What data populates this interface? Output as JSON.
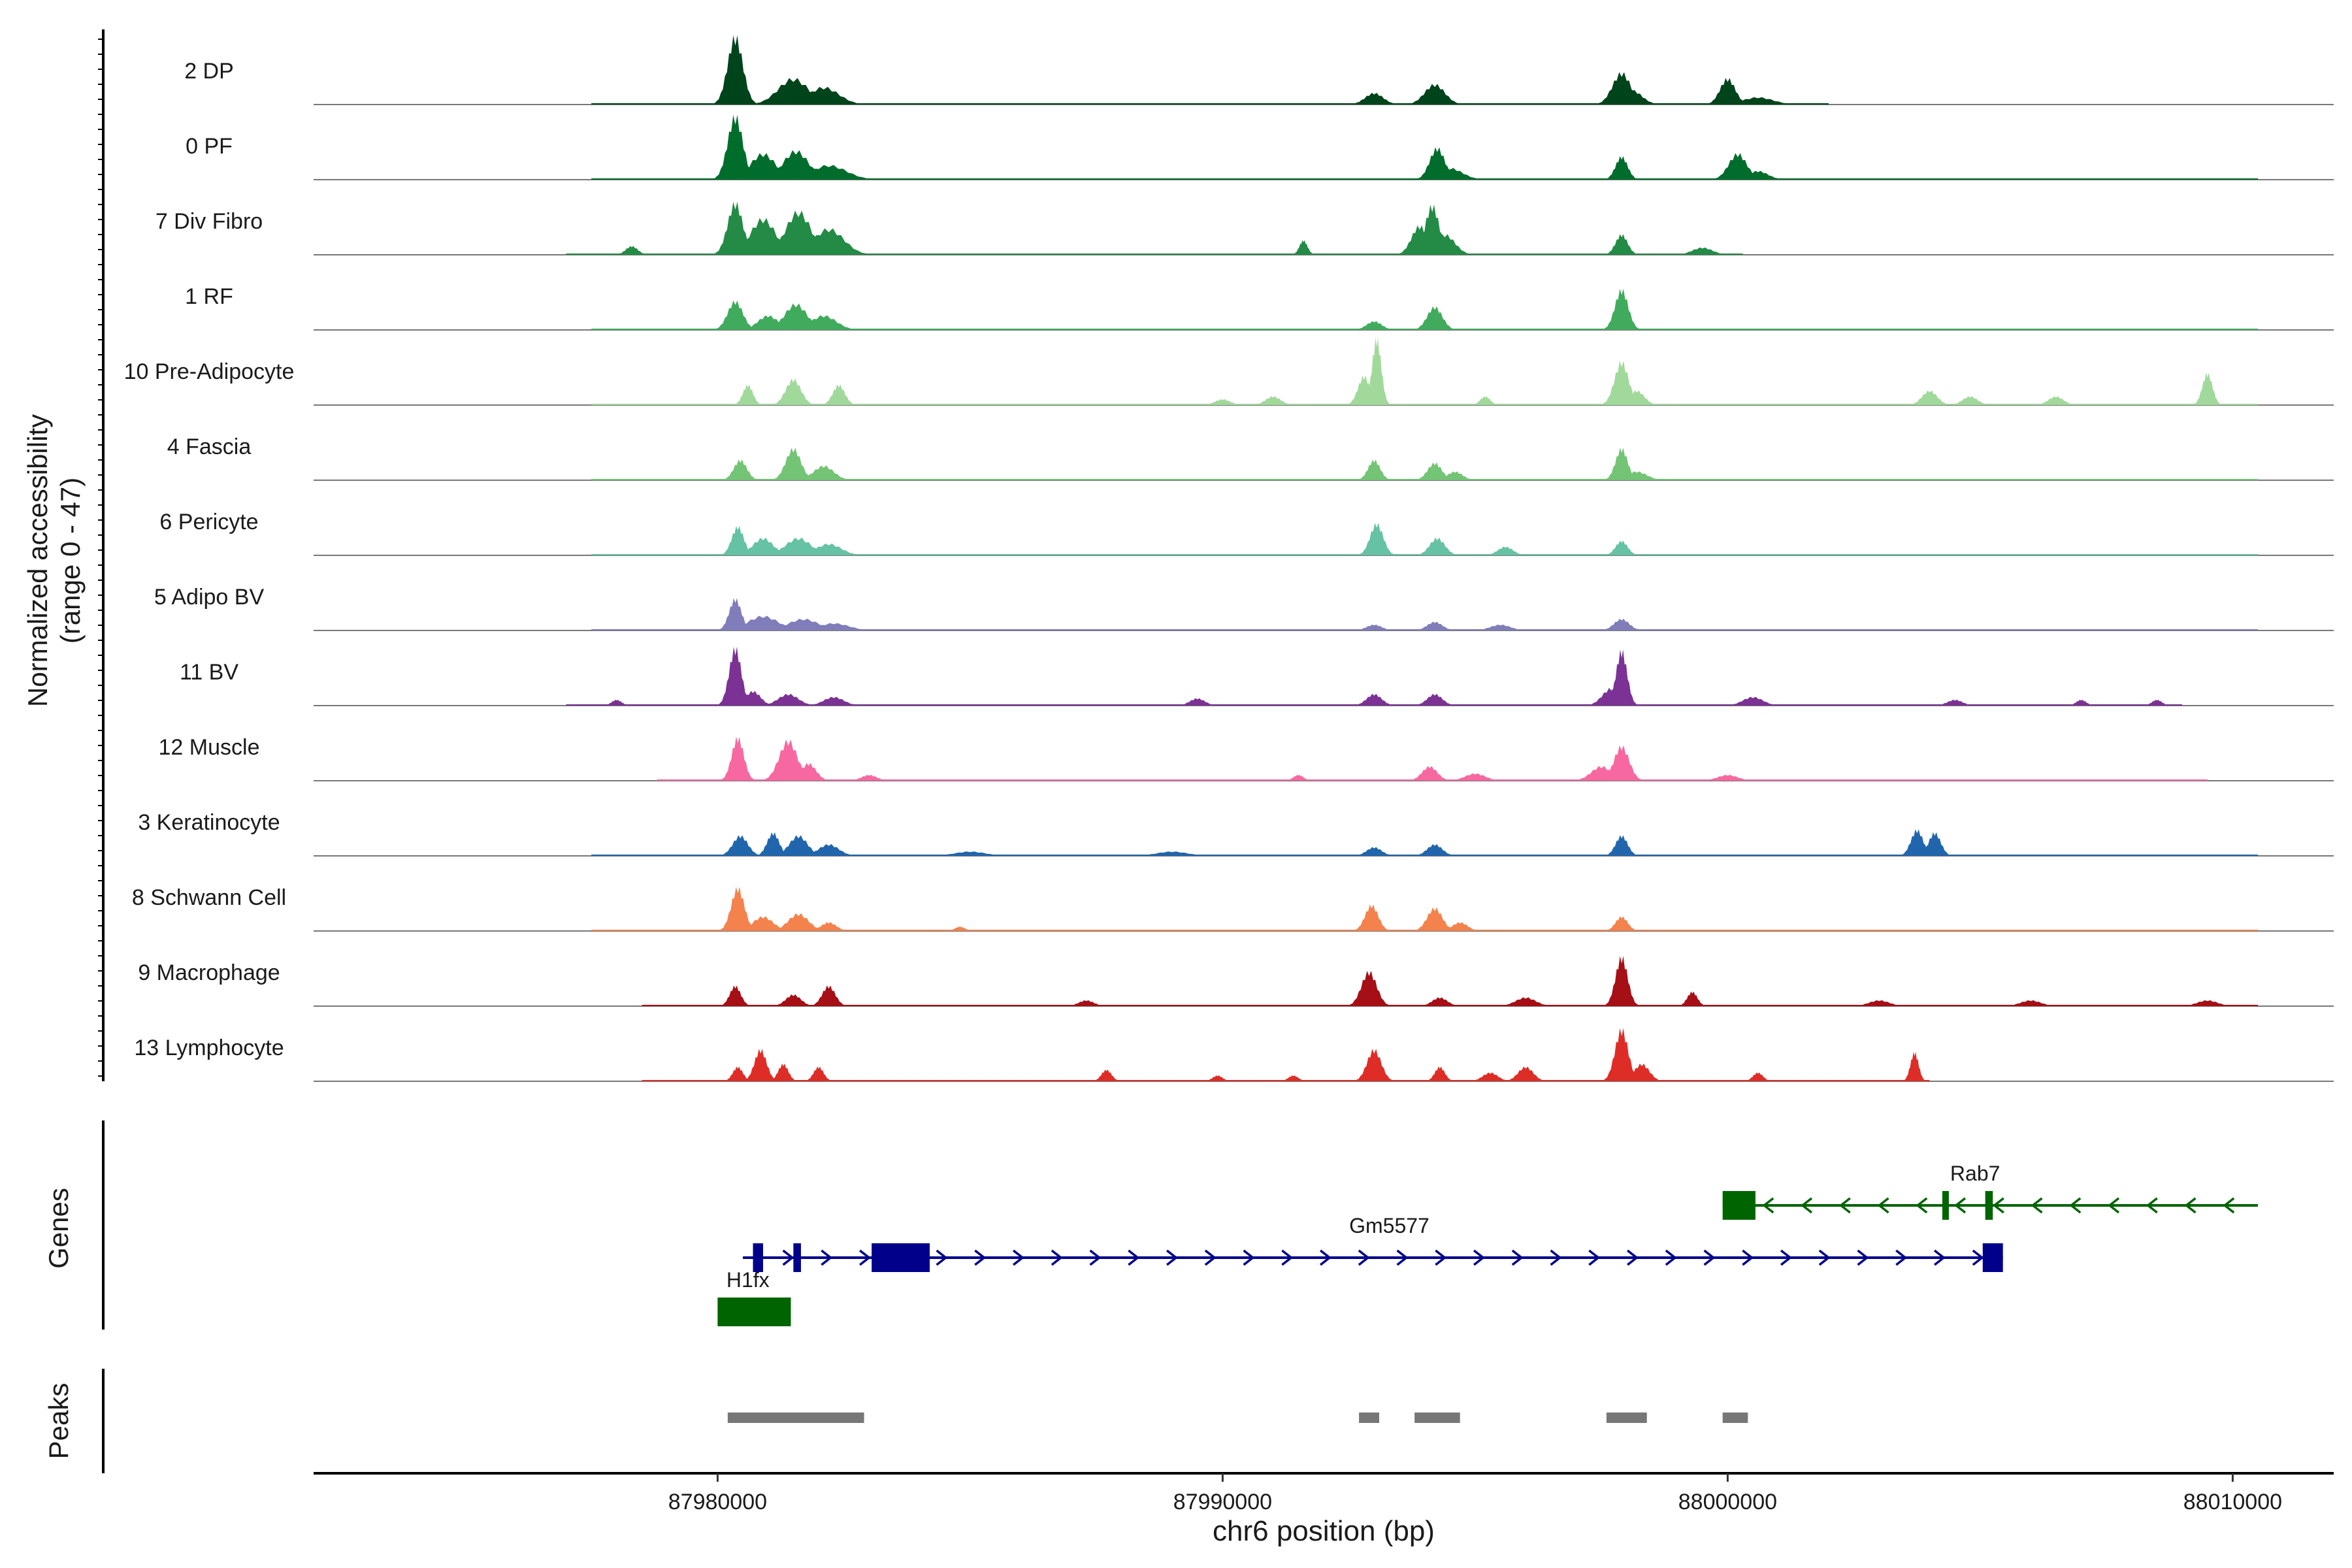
{
  "chart_data": {
    "type": "area",
    "title": "",
    "region": "chr6",
    "xlabel": "chr6 position (bp)",
    "ylabel_line1": "Normalized accessibility",
    "ylabel_line2": "(range 0 - 47)",
    "xlim": [
      87972000,
      88012000
    ],
    "xticks": [
      87980000,
      87990000,
      88000000,
      88010000
    ],
    "xtick_labels": [
      "87980000",
      "87990000",
      "88000000",
      "88010000"
    ],
    "ylim": [
      0,
      47
    ],
    "tracks": [
      {
        "name": "2 DP",
        "color": "#00441b",
        "span": [
          87977500,
          88002000
        ],
        "peaks": [
          [
            87980350,
            47,
            150
          ],
          [
            87981500,
            18,
            300
          ],
          [
            87982100,
            12,
            300
          ],
          [
            87993000,
            8,
            180
          ],
          [
            87994200,
            14,
            200
          ],
          [
            87997900,
            22,
            180
          ],
          [
            87998100,
            10,
            200
          ],
          [
            88000000,
            18,
            150
          ],
          [
            88000600,
            5,
            300
          ]
        ]
      },
      {
        "name": "0 PF",
        "color": "#006d2c",
        "span": [
          87977500,
          88010500
        ],
        "peaks": [
          [
            87980350,
            44,
            150
          ],
          [
            87980900,
            18,
            250
          ],
          [
            87981550,
            20,
            250
          ],
          [
            87982200,
            10,
            350
          ],
          [
            87994250,
            22,
            150
          ],
          [
            87994500,
            8,
            250
          ],
          [
            87997900,
            16,
            120
          ],
          [
            88000200,
            18,
            180
          ],
          [
            88000600,
            6,
            200
          ]
        ]
      },
      {
        "name": "7 Div Fibro",
        "color": "#238b45",
        "span": [
          87977000,
          88000300
        ],
        "peaks": [
          [
            87980350,
            36,
            150
          ],
          [
            87980900,
            25,
            250
          ],
          [
            87981600,
            30,
            250
          ],
          [
            87982200,
            18,
            300
          ],
          [
            87991600,
            10,
            80
          ],
          [
            87994150,
            34,
            140
          ],
          [
            87993900,
            20,
            160
          ],
          [
            87994400,
            14,
            200
          ],
          [
            87997900,
            14,
            120
          ],
          [
            87999500,
            5,
            200
          ],
          [
            87978300,
            6,
            120
          ]
        ]
      },
      {
        "name": "1 RF",
        "color": "#41ab5d",
        "span": [
          87977500,
          88010500
        ],
        "peaks": [
          [
            87980350,
            20,
            150
          ],
          [
            87981550,
            18,
            220
          ],
          [
            87982100,
            10,
            250
          ],
          [
            87993000,
            6,
            150
          ],
          [
            87994200,
            16,
            150
          ],
          [
            87997900,
            28,
            130
          ],
          [
            87981000,
            10,
            200
          ]
        ]
      },
      {
        "name": "10 Pre-Adipocyte",
        "color": "#a1d99b",
        "span": [
          87977500,
          88010500
        ],
        "peaks": [
          [
            87980600,
            14,
            100
          ],
          [
            87981500,
            18,
            150
          ],
          [
            87982400,
            14,
            120
          ],
          [
            87992800,
            20,
            120
          ],
          [
            87993050,
            46,
            90
          ],
          [
            87995200,
            6,
            100
          ],
          [
            87997900,
            30,
            140
          ],
          [
            87998200,
            10,
            150
          ],
          [
            88004000,
            10,
            150
          ],
          [
            88004800,
            6,
            150
          ],
          [
            88006500,
            6,
            150
          ],
          [
            88009500,
            22,
            100
          ],
          [
            87991000,
            6,
            150
          ],
          [
            87990000,
            4,
            150
          ]
        ]
      },
      {
        "name": "4 Fascia",
        "color": "#74c476",
        "span": [
          87977500,
          88010500
        ],
        "peaks": [
          [
            87980450,
            14,
            130
          ],
          [
            87981500,
            22,
            150
          ],
          [
            87982100,
            10,
            200
          ],
          [
            87993000,
            14,
            120
          ],
          [
            87994200,
            12,
            140
          ],
          [
            87994600,
            6,
            150
          ],
          [
            87997900,
            22,
            120
          ],
          [
            87998200,
            6,
            200
          ]
        ]
      },
      {
        "name": "6 Pericyte",
        "color": "#66c2a4",
        "span": [
          87977500,
          88010500
        ],
        "peaks": [
          [
            87980400,
            20,
            120
          ],
          [
            87980900,
            12,
            200
          ],
          [
            87981600,
            12,
            250
          ],
          [
            87982200,
            8,
            250
          ],
          [
            87993050,
            22,
            130
          ],
          [
            87994250,
            12,
            150
          ],
          [
            87995600,
            6,
            150
          ],
          [
            87997900,
            10,
            120
          ]
        ]
      },
      {
        "name": "5 Adipo BV",
        "color": "#807dba",
        "span": [
          87977500,
          88010500
        ],
        "peaks": [
          [
            87980350,
            22,
            120
          ],
          [
            87980900,
            10,
            300
          ],
          [
            87981700,
            8,
            300
          ],
          [
            87982300,
            5,
            300
          ],
          [
            87993000,
            4,
            150
          ],
          [
            87994200,
            6,
            150
          ],
          [
            87995500,
            4,
            200
          ],
          [
            87997900,
            8,
            150
          ]
        ]
      },
      {
        "name": "11 BV",
        "color": "#7b3294",
        "span": [
          87977000,
          88009000
        ],
        "peaks": [
          [
            87980350,
            40,
            120
          ],
          [
            87980700,
            10,
            150
          ],
          [
            87981400,
            8,
            200
          ],
          [
            87982300,
            6,
            200
          ],
          [
            87989500,
            5,
            150
          ],
          [
            87993000,
            8,
            150
          ],
          [
            87994200,
            8,
            150
          ],
          [
            87997900,
            38,
            110
          ],
          [
            87997700,
            12,
            180
          ],
          [
            88000500,
            6,
            200
          ],
          [
            88004500,
            4,
            150
          ],
          [
            88007000,
            4,
            100
          ],
          [
            88008500,
            4,
            100
          ],
          [
            87978000,
            4,
            100
          ]
        ]
      },
      {
        "name": "12 Muscle",
        "color": "#f768a1",
        "span": [
          87978800,
          88009500
        ],
        "peaks": [
          [
            87980400,
            30,
            120
          ],
          [
            87981400,
            28,
            180
          ],
          [
            87981800,
            12,
            150
          ],
          [
            87983000,
            4,
            150
          ],
          [
            87991500,
            4,
            100
          ],
          [
            87994100,
            10,
            150
          ],
          [
            87995000,
            5,
            200
          ],
          [
            87997900,
            24,
            150
          ],
          [
            87997500,
            10,
            200
          ],
          [
            88000000,
            4,
            200
          ]
        ]
      },
      {
        "name": "3 Keratinocyte",
        "color": "#2166ac",
        "span": [
          87977500,
          88010500
        ],
        "peaks": [
          [
            87980450,
            14,
            150
          ],
          [
            87981100,
            16,
            120
          ],
          [
            87981600,
            14,
            180
          ],
          [
            87982200,
            8,
            200
          ],
          [
            87993000,
            6,
            150
          ],
          [
            87994200,
            8,
            150
          ],
          [
            87997900,
            14,
            120
          ],
          [
            88003750,
            18,
            120
          ],
          [
            88004100,
            16,
            120
          ],
          [
            87989000,
            3,
            300
          ],
          [
            87985000,
            3,
            300
          ]
        ]
      },
      {
        "name": "8 Schwann Cell",
        "color": "#f4824d",
        "span": [
          87977500,
          88010500
        ],
        "peaks": [
          [
            87980400,
            30,
            130
          ],
          [
            87980900,
            10,
            200
          ],
          [
            87981600,
            12,
            200
          ],
          [
            87982200,
            6,
            150
          ],
          [
            87992950,
            18,
            130
          ],
          [
            87994200,
            16,
            150
          ],
          [
            87994700,
            6,
            150
          ],
          [
            87997900,
            10,
            120
          ],
          [
            87984800,
            3,
            100
          ]
        ]
      },
      {
        "name": "9 Macrophage",
        "color": "#a50f15",
        "span": [
          87978500,
          88010500
        ],
        "peaks": [
          [
            87980350,
            14,
            110
          ],
          [
            87981500,
            8,
            150
          ],
          [
            87982200,
            14,
            130
          ],
          [
            87992900,
            24,
            150
          ],
          [
            87994300,
            6,
            150
          ],
          [
            87996000,
            6,
            200
          ],
          [
            87997900,
            34,
            120
          ],
          [
            87999300,
            10,
            100
          ],
          [
            88003000,
            4,
            200
          ],
          [
            88006000,
            4,
            200
          ],
          [
            88009500,
            4,
            200
          ],
          [
            87987300,
            4,
            150
          ]
        ]
      },
      {
        "name": "13 Lymphocyte",
        "color": "#de2d26",
        "span": [
          87978500,
          88004000
        ],
        "peaks": [
          [
            87980400,
            10,
            100
          ],
          [
            87980850,
            22,
            120
          ],
          [
            87981300,
            12,
            100
          ],
          [
            87982000,
            10,
            100
          ],
          [
            87987700,
            8,
            100
          ],
          [
            87993000,
            22,
            140
          ],
          [
            87994300,
            10,
            100
          ],
          [
            87996000,
            10,
            150
          ],
          [
            87997900,
            36,
            130
          ],
          [
            87998300,
            12,
            150
          ],
          [
            88000600,
            6,
            100
          ],
          [
            88003700,
            20,
            80
          ],
          [
            87989900,
            4,
            100
          ],
          [
            87991400,
            4,
            100
          ],
          [
            87995300,
            6,
            150
          ]
        ]
      }
    ],
    "genes_label": "Genes",
    "peaks_label": "Peaks",
    "genes": [
      {
        "name": "Rab7",
        "strand": "-",
        "color": "#006400",
        "line": [
          87999900,
          88010500
        ],
        "exons": [
          [
            87999900,
            88000550
          ],
          [
            88004250,
            88004350
          ],
          [
            88005100,
            88005250
          ]
        ]
      },
      {
        "name": "Gm5577",
        "strand": "+",
        "color": "#00008b",
        "line": [
          87980500,
          88005450
        ],
        "exons": [
          [
            87980700,
            87980900
          ],
          [
            87981500,
            87981650
          ],
          [
            87983050,
            87984200
          ],
          [
            88005050,
            88005450
          ]
        ]
      },
      {
        "name": "H1fx",
        "strand": "+",
        "color": "#006400",
        "line": [
          87980000,
          87981450
        ],
        "exons": [
          [
            87980000,
            87981450
          ]
        ]
      }
    ],
    "peak_regions": [
      [
        87980200,
        87982900
      ],
      [
        87992700,
        87993100
      ],
      [
        87993800,
        87994700
      ],
      [
        87997600,
        87998400
      ],
      [
        87999900,
        88000400
      ]
    ],
    "peak_color": "#777777"
  }
}
